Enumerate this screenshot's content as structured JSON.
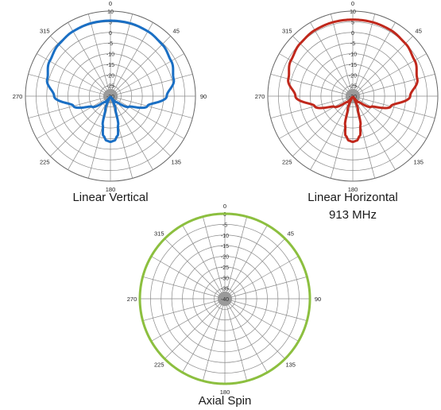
{
  "chart_data": [
    {
      "type": "polar",
      "title": "Linear Vertical",
      "subtitle": "",
      "angle_labels": [
        "0",
        "45",
        "90",
        "135",
        "180",
        "225",
        "270",
        "315"
      ],
      "radial_ticks": [
        "10",
        "5",
        "0",
        "-5",
        "-10",
        "-15",
        "-20",
        "-25",
        "-30"
      ],
      "series": [
        {
          "color": "#1a6fc4",
          "angles": [
            0,
            15,
            30,
            45,
            60,
            75,
            90,
            105,
            120,
            135,
            150,
            160,
            165,
            170,
            175,
            180,
            185,
            190,
            195,
            200,
            210,
            225,
            240,
            255,
            270,
            285,
            300,
            315,
            330,
            345,
            360
          ],
          "values": [
            5.5,
            5.5,
            5.2,
            4.4,
            3,
            0.8,
            -3.5,
            -12,
            -20,
            -26,
            -29.5,
            -23,
            -16,
            -11,
            -9,
            -8.5,
            -9,
            -11,
            -16,
            -23,
            -29.5,
            -26,
            -20,
            -12,
            -3.5,
            0.8,
            3,
            4.4,
            5.2,
            5.5,
            5.5
          ]
        }
      ]
    },
    {
      "type": "polar",
      "title": "Linear Horizontal",
      "subtitle": "913 MHz",
      "angle_labels": [
        "0",
        "45",
        "90",
        "135",
        "180",
        "225",
        "270",
        "315"
      ],
      "radial_ticks": [
        "10",
        "5",
        "0",
        "-5",
        "-10",
        "-15",
        "-20",
        "-25",
        "-30"
      ],
      "series": [
        {
          "color": "#c0281c",
          "angles": [
            0,
            15,
            30,
            45,
            60,
            75,
            90,
            105,
            120,
            135,
            150,
            160,
            165,
            170,
            175,
            180,
            185,
            190,
            195,
            200,
            210,
            225,
            240,
            255,
            270,
            285,
            300,
            315,
            330,
            345,
            360
          ],
          "values": [
            6,
            6,
            5.8,
            5,
            3.6,
            1.4,
            -3,
            -11.5,
            -20,
            -26,
            -29.5,
            -23,
            -16,
            -11,
            -9,
            -8.5,
            -9,
            -11,
            -16,
            -23,
            -29.5,
            -26,
            -20,
            -11.5,
            -3,
            1.4,
            3.6,
            5,
            5.8,
            6,
            6
          ]
        }
      ]
    },
    {
      "type": "polar",
      "title": "Axial Spin",
      "subtitle": "",
      "angle_labels": [
        "0",
        "45",
        "90",
        "135",
        "180",
        "225",
        "270",
        "315"
      ],
      "radial_ticks": [
        "0",
        "-5",
        "-10",
        "-15",
        "-20",
        "-25",
        "-30",
        "-35",
        "-40"
      ],
      "series": [
        {
          "color": "#8cbf3f",
          "angles": [
            0,
            30,
            60,
            90,
            120,
            150,
            180,
            210,
            240,
            270,
            300,
            330,
            360
          ],
          "values": [
            0,
            0,
            0,
            0,
            0,
            0,
            0,
            0,
            0,
            0,
            0,
            0,
            0
          ]
        }
      ]
    }
  ]
}
